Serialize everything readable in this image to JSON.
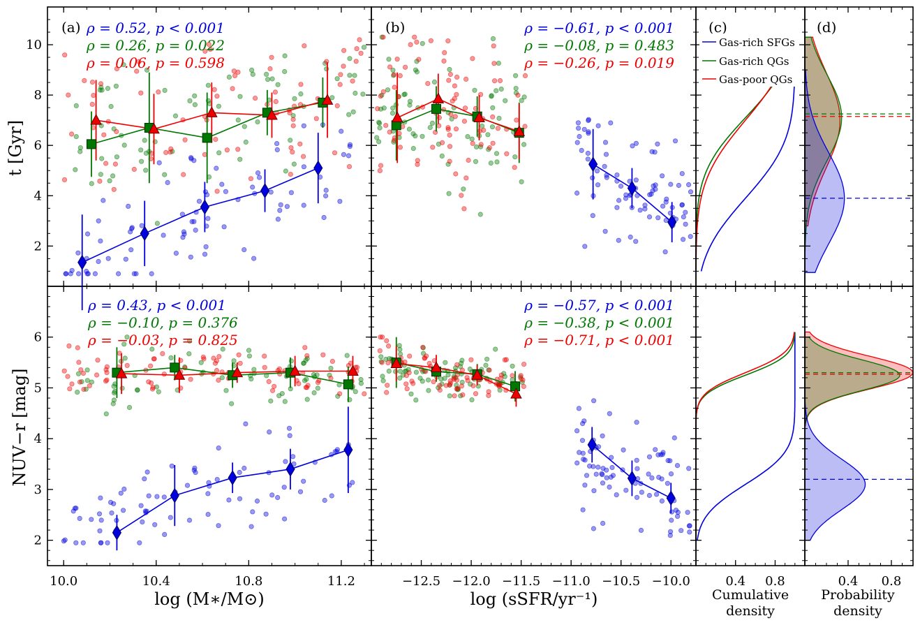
{
  "figure": {
    "panel_letters": [
      "(a)",
      "(b)",
      "(c)",
      "(d)"
    ],
    "xlabels": {
      "mass": "log (M∗/M⊙)",
      "ssfr": "log (sSFR/yr⁻¹)",
      "cum": "Cumulative",
      "cum2": "density",
      "pdf": "Probability",
      "pdf2": "density"
    },
    "ylabels": {
      "top": "t [Gyr]",
      "bottom": "NUV−r [mag]"
    },
    "legend": [
      "Gas-rich SFGs",
      "Gas-rich QGs",
      "Gas-poor QGs"
    ],
    "colors": {
      "sfg": "#0000dd",
      "qgrich": "#007700",
      "qgpoor": "#ee0000"
    }
  },
  "stats": {
    "a": [
      "ρ = 0.52,  p < 0.001",
      "ρ = 0.26,  p = 0.022",
      "ρ = 0.06,  p = 0.598"
    ],
    "b": [
      "ρ = −0.61,  p < 0.001",
      "ρ = −0.08,  p = 0.483",
      "ρ = −0.26,  p = 0.019"
    ],
    "e": [
      "ρ = 0.43,      p < 0.001",
      "ρ = −0.10,  p = 0.376",
      "ρ = −0.03,  p = 0.825"
    ],
    "f": [
      "ρ = −0.57,  p < 0.001",
      "ρ = −0.38,  p < 0.001",
      "ρ = −0.71,  p < 0.001"
    ]
  },
  "chart_data": [
    {
      "type": "scatter",
      "panel": "a",
      "xlabel": "log (M∗/M⊙)",
      "ylabel": "t [Gyr]",
      "xlim": [
        9.93,
        11.33
      ],
      "ylim": [
        0.4,
        11.5
      ],
      "xticks": [
        "10.0",
        "10.4",
        "10.8",
        "11.2"
      ],
      "yticks": [
        "2",
        "4",
        "6",
        "8",
        "10"
      ],
      "binned": [
        {
          "name": "Gas-rich SFGs",
          "x": [
            10.08,
            10.35,
            10.61,
            10.87,
            11.1
          ],
          "y": [
            1.35,
            2.5,
            3.55,
            4.2,
            5.1
          ],
          "err": [
            1.9,
            1.3,
            1.0,
            0.85,
            1.4
          ]
        },
        {
          "name": "Gas-rich QGs",
          "x": [
            10.12,
            10.37,
            10.62,
            10.88,
            11.12
          ],
          "y": [
            6.05,
            6.7,
            6.3,
            7.3,
            7.7
          ],
          "err": [
            1.3,
            2.2,
            1.8,
            0.9,
            1.0
          ]
        },
        {
          "name": "Gas-poor QGs",
          "x": [
            10.14,
            10.39,
            10.64,
            10.9,
            11.14
          ],
          "y": [
            7.0,
            6.65,
            7.3,
            7.2,
            7.8
          ],
          "err": [
            1.6,
            1.4,
            1.2,
            0.9,
            1.5
          ]
        }
      ]
    },
    {
      "type": "scatter",
      "panel": "b",
      "xlabel": "log (sSFR/yr⁻¹)",
      "ylabel": "t [Gyr]",
      "xlim": [
        -13.0,
        -9.75
      ],
      "ylim": [
        0.4,
        11.5
      ],
      "xticks": [
        "−12.5",
        "−12.0",
        "−11.5",
        "−11.0",
        "−10.5",
        "−10.0"
      ],
      "binned": [
        {
          "name": "Gas-rich SFGs",
          "x": [
            -10.78,
            -10.39,
            -9.99
          ],
          "y": [
            5.25,
            4.3,
            2.95
          ],
          "err": [
            1.4,
            0.8,
            0.8
          ]
        },
        {
          "name": "Gas-rich QGs",
          "x": [
            -12.75,
            -12.35,
            -11.94,
            -11.52
          ],
          "y": [
            6.8,
            7.45,
            7.15,
            6.5
          ],
          "err": [
            1.4,
            0.9,
            0.8,
            1.2
          ]
        },
        {
          "name": "Gas-poor QGs",
          "x": [
            -12.74,
            -12.33,
            -11.92,
            -11.52
          ],
          "y": [
            7.1,
            7.85,
            7.1,
            6.55
          ],
          "err": [
            1.8,
            1.0,
            0.9,
            1.1
          ]
        }
      ]
    },
    {
      "type": "scatter",
      "panel": "e",
      "xlabel": "log (M∗/M⊙)",
      "ylabel": "NUV−r [mag]",
      "xlim": [
        9.93,
        11.33
      ],
      "ylim": [
        1.5,
        7.0
      ],
      "yticks": [
        "2",
        "3",
        "4",
        "5",
        "6"
      ],
      "binned": [
        {
          "name": "Gas-rich SFGs",
          "x": [
            10.23,
            10.48,
            10.73,
            10.98,
            11.23
          ],
          "y": [
            2.15,
            2.88,
            3.23,
            3.4,
            3.78
          ],
          "err": [
            0.35,
            0.6,
            0.3,
            0.4,
            0.85
          ]
        },
        {
          "name": "Gas-rich QGs",
          "x": [
            10.23,
            10.48,
            10.73,
            10.98,
            11.23
          ],
          "y": [
            5.3,
            5.4,
            5.25,
            5.3,
            5.07
          ],
          "err": [
            0.5,
            0.25,
            0.25,
            0.3,
            0.35
          ]
        },
        {
          "name": "Gas-poor QGs",
          "x": [
            10.25,
            10.5,
            10.75,
            11.0,
            11.25
          ],
          "y": [
            5.28,
            5.25,
            5.3,
            5.33,
            5.33
          ],
          "err": [
            0.4,
            0.35,
            0.2,
            0.3,
            0.3
          ]
        }
      ]
    },
    {
      "type": "scatter",
      "panel": "f",
      "xlabel": "log (sSFR/yr⁻¹)",
      "ylabel": "NUV−r [mag]",
      "xlim": [
        -13.0,
        -9.75
      ],
      "ylim": [
        1.5,
        7.0
      ],
      "binned": [
        {
          "name": "Gas-rich SFGs",
          "x": [
            -10.79,
            -10.39,
            -10.0
          ],
          "y": [
            3.88,
            3.22,
            2.83
          ],
          "err": [
            0.35,
            0.35,
            0.3
          ]
        },
        {
          "name": "Gas-rich QGs",
          "x": [
            -12.75,
            -12.35,
            -11.94,
            -11.56
          ],
          "y": [
            5.5,
            5.32,
            5.27,
            5.03
          ],
          "err": [
            0.5,
            0.2,
            0.2,
            0.3
          ]
        },
        {
          "name": "Gas-poor QGs",
          "x": [
            -12.75,
            -12.35,
            -11.94,
            -11.55
          ],
          "y": [
            5.48,
            5.4,
            5.25,
            4.88
          ],
          "err": [
            0.35,
            0.25,
            0.2,
            0.25
          ]
        }
      ]
    },
    {
      "type": "line",
      "panel": "c",
      "xlabel": "Cumulative density",
      "xlim": [
        0,
        1.1
      ],
      "xticks": [
        "0.4",
        "0.8"
      ],
      "series": [
        {
          "name": "Gas-rich SFGs",
          "t": {
            "mu": 3.9,
            "sigma": 1.8
          },
          "nuv": {
            "mu": 3.1,
            "sigma": 0.5
          }
        },
        {
          "name": "Gas-rich QGs",
          "t": {
            "mu": 7.1,
            "sigma": 1.7
          },
          "nuv": {
            "mu": 5.25,
            "sigma": 0.3
          }
        },
        {
          "name": "Gas-poor QGs",
          "t": {
            "mu": 7.0,
            "sigma": 1.9
          },
          "nuv": {
            "mu": 5.3,
            "sigma": 0.32
          }
        }
      ]
    },
    {
      "type": "area",
      "panel": "d",
      "xlabel": "Probability density",
      "xlim": [
        0,
        1.0
      ],
      "xticks": [
        "0.4",
        "0.8"
      ],
      "medians": {
        "t": [
          3.9,
          7.25,
          7.15
        ],
        "nuv": [
          3.2,
          5.3,
          5.27
        ]
      }
    }
  ]
}
